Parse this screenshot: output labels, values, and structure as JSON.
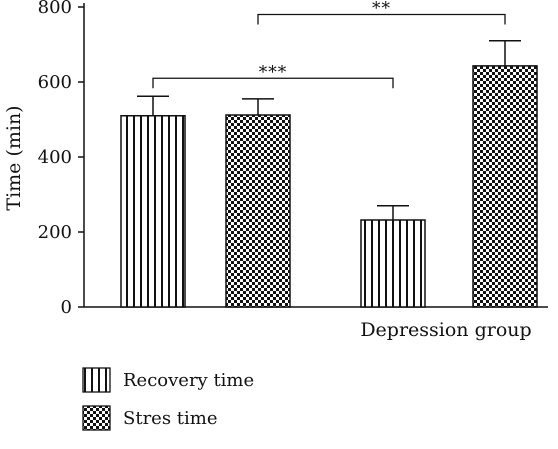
{
  "chart_data": {
    "type": "bar",
    "ylabel": "Time (min)",
    "ylim": [
      0,
      800
    ],
    "yticks": [
      0,
      200,
      400,
      600,
      800
    ],
    "group_label": "Depression group",
    "series": [
      {
        "name": "Recovery time",
        "pattern": "vertical-stripes"
      },
      {
        "name": "Stres time",
        "pattern": "checkerboard"
      }
    ],
    "bars": [
      {
        "series": "Recovery time",
        "value": 510,
        "error": 52
      },
      {
        "series": "Stres time",
        "value": 512,
        "error": 43
      },
      {
        "series": "Recovery time",
        "value": 232,
        "error": 38
      },
      {
        "series": "Stres time",
        "value": 643,
        "error": 67
      }
    ],
    "annotations": [
      {
        "label": "***",
        "from_bar": 0,
        "to_bar": 2,
        "level": 610
      },
      {
        "label": "**",
        "from_bar": 1,
        "to_bar": 3,
        "level": 780
      }
    ],
    "grid": false,
    "legend_position": "bottom-left"
  },
  "colors": {
    "ink": "#111111",
    "fill": "#ffffff"
  }
}
